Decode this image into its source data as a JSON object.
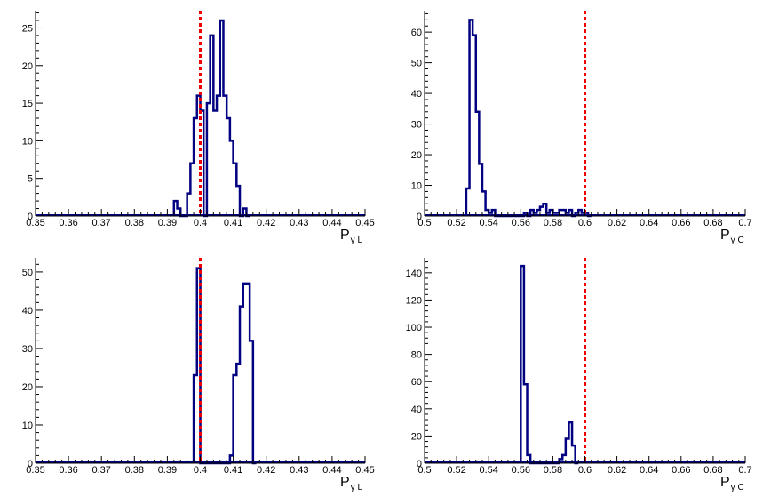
{
  "colors": {
    "histogram": "#000080",
    "reference_line": "#ee0000",
    "axis": "#000000",
    "background": "#ffffff"
  },
  "chart_data": [
    {
      "type": "histogram",
      "xlabel": {
        "main": "P",
        "sub": "γ L"
      },
      "xlim": [
        0.35,
        0.45
      ],
      "ylim": [
        0,
        27.3
      ],
      "xticks": [
        "0.35",
        "0.36",
        "0.37",
        "0.38",
        "0.39",
        "0.4",
        "0.41",
        "0.42",
        "0.43",
        "0.44",
        "0.45"
      ],
      "yticks": [
        "0",
        "5",
        "10",
        "15",
        "20",
        "25"
      ],
      "bin_width": 0.001,
      "bins_start": 0.392,
      "counts": [
        2,
        1,
        0,
        0,
        3,
        7,
        13,
        16,
        14,
        0,
        15,
        24,
        14,
        16,
        26,
        16,
        13,
        10,
        7,
        4,
        0,
        1,
        0
      ],
      "reference_line": 0.4,
      "grid": false
    },
    {
      "type": "histogram",
      "xlabel": {
        "main": "P",
        "sub": "γ C"
      },
      "xlim": [
        0.5,
        0.7
      ],
      "ylim": [
        0,
        67
      ],
      "xticks": [
        "0.5",
        "0.52",
        "0.54",
        "0.56",
        "0.58",
        "0.6",
        "0.62",
        "0.64",
        "0.66",
        "0.68",
        "0.7"
      ],
      "yticks": [
        "0",
        "10",
        "20",
        "30",
        "40",
        "50",
        "60"
      ],
      "bin_width": 0.002,
      "bins_start": 0.526,
      "counts": [
        9,
        64,
        59,
        34,
        17,
        8,
        2,
        1,
        2,
        0,
        0,
        0,
        0,
        0,
        0,
        0,
        0,
        0,
        1,
        0,
        2,
        1,
        2,
        3,
        4,
        1,
        2,
        1,
        1,
        2,
        2,
        1,
        2,
        0,
        1,
        2,
        1,
        1,
        0
      ],
      "reference_line": 0.6,
      "grid": false
    },
    {
      "type": "histogram",
      "xlabel": {
        "main": "P",
        "sub": "γ L"
      },
      "xlim": [
        0.35,
        0.45
      ],
      "ylim": [
        0,
        53.7
      ],
      "xticks": [
        "0.35",
        "0.36",
        "0.37",
        "0.38",
        "0.39",
        "0.4",
        "0.41",
        "0.42",
        "0.43",
        "0.44",
        "0.45"
      ],
      "yticks": [
        "0",
        "10",
        "20",
        "30",
        "40",
        "50"
      ],
      "bin_width": 0.001,
      "bins_start": 0.398,
      "counts": [
        23,
        51,
        0,
        0,
        0,
        0,
        0,
        0,
        0,
        0,
        0,
        2,
        23,
        26,
        41,
        47,
        47,
        32,
        0
      ],
      "reference_line": 0.4,
      "grid": false
    },
    {
      "type": "histogram",
      "xlabel": {
        "main": "P",
        "sub": "γ C"
      },
      "xlim": [
        0.5,
        0.7
      ],
      "ylim": [
        0,
        151
      ],
      "xticks": [
        "0.5",
        "0.52",
        "0.54",
        "0.56",
        "0.58",
        "0.6",
        "0.62",
        "0.64",
        "0.66",
        "0.68",
        "0.7"
      ],
      "yticks": [
        "0",
        "20",
        "40",
        "60",
        "80",
        "100",
        "120",
        "140"
      ],
      "bin_width": 0.002,
      "bins_start": 0.56,
      "counts": [
        145,
        58,
        6,
        0,
        0,
        0,
        0,
        0,
        0,
        0,
        0,
        0,
        3,
        6,
        18,
        30,
        13,
        0
      ],
      "reference_line": 0.6,
      "grid": false
    }
  ]
}
